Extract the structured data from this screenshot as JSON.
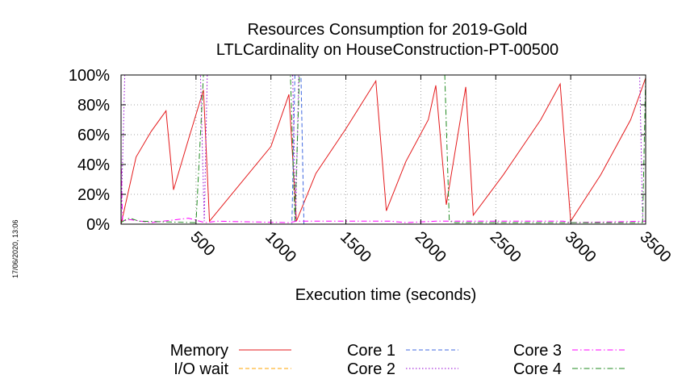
{
  "chart_data": {
    "type": "line",
    "title": [
      "Resources Consumption for 2019-Gold",
      "LTLCardinality on HouseConstruction-PT-00500"
    ],
    "xlabel": "Execution time (seconds)",
    "ylabel": "",
    "xlim": [
      0,
      3500
    ],
    "ylim": [
      0,
      100
    ],
    "x_ticks": [
      500,
      1000,
      1500,
      2000,
      2500,
      3000,
      3500
    ],
    "x_tick_labels": [
      "500",
      "1000",
      "1500",
      "2000",
      "2500",
      "3000",
      "3500"
    ],
    "y_ticks": [
      0,
      20,
      40,
      60,
      80,
      100
    ],
    "y_tick_labels": [
      "0%",
      "20%",
      "40%",
      "60%",
      "80%",
      "100%"
    ],
    "grid": true,
    "legend_placement": "bottom",
    "timestamp": "17/06/2020, 13:06",
    "series": [
      {
        "name": "Memory",
        "color": "#e41a1c",
        "dash": "solid",
        "x": [
          0,
          100,
          200,
          300,
          350,
          450,
          550,
          590,
          1000,
          1120,
          1170,
          1300,
          1500,
          1700,
          1770,
          1900,
          2050,
          2100,
          2170,
          2300,
          2350,
          2550,
          2800,
          2930,
          3000,
          3200,
          3400,
          3500
        ],
        "y": [
          0,
          45,
          62,
          76,
          23,
          57,
          90,
          2,
          52,
          87,
          2,
          34,
          64,
          96,
          9,
          42,
          70,
          93,
          13,
          92,
          6,
          33,
          70,
          94,
          2,
          33,
          70,
          98
        ]
      },
      {
        "name": "I/O wait",
        "color": "#ffa500",
        "dash": "dashed",
        "x": [
          0,
          3500
        ],
        "y": [
          0,
          0
        ]
      },
      {
        "name": "Core 1",
        "color": "#4169e1",
        "dash": "dashed",
        "x": [
          0,
          1140,
          1160,
          1200,
          1220,
          1240,
          3500
        ],
        "y": [
          0,
          0,
          100,
          100,
          0,
          0,
          0
        ]
      },
      {
        "name": "Core 2",
        "color": "#9400d3",
        "dash": "dotted",
        "x": [
          0,
          25,
          40,
          530,
          555,
          575,
          1145,
          1165,
          1185,
          2180,
          2200,
          3460,
          3480,
          3500
        ],
        "y": [
          2,
          100,
          100,
          100,
          2,
          100,
          100,
          2,
          100,
          100,
          100,
          100,
          2,
          2
        ]
      },
      {
        "name": "Core 3",
        "color": "#ff00ff",
        "dash": "dashdot",
        "x": [
          0,
          10,
          60,
          200,
          450,
          560,
          640,
          1120,
          1170,
          1800,
          1900,
          2100,
          2950,
          3000,
          3500
        ],
        "y": [
          45,
          2,
          3,
          1,
          4,
          1,
          2,
          1,
          2,
          2,
          1,
          2,
          2,
          1,
          2
        ]
      },
      {
        "name": "Core 4",
        "color": "#228b22",
        "dash": "dashdot",
        "x": [
          0,
          30,
          60,
          120,
          490,
          500,
          550,
          580,
          1110,
          1130,
          1160,
          1190,
          2140,
          2160,
          2190,
          2230,
          3480,
          3500
        ],
        "y": [
          1,
          3,
          4,
          2,
          1,
          1,
          100,
          100,
          100,
          100,
          2,
          100,
          100,
          100,
          2,
          1,
          1,
          100
        ]
      }
    ]
  }
}
